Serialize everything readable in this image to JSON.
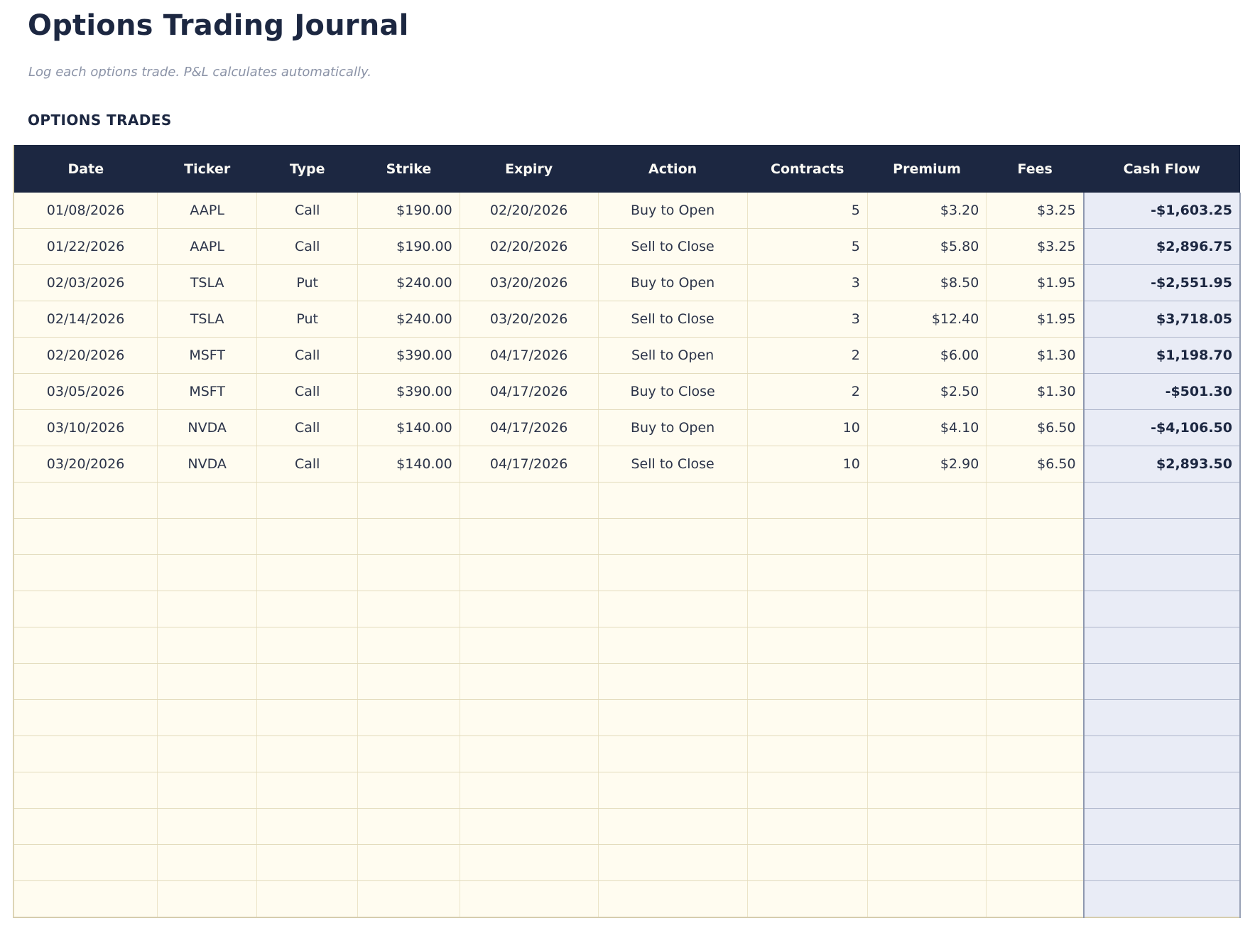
{
  "page": {
    "title": "Options Trading Journal",
    "subtitle": "Log each options trade. P&L calculates automatically.",
    "section_title": "OPTIONS TRADES"
  },
  "table": {
    "columns": [
      {
        "label": "Date",
        "name": "date",
        "align": "center"
      },
      {
        "label": "Ticker",
        "name": "ticker",
        "align": "center"
      },
      {
        "label": "Type",
        "name": "type",
        "align": "center"
      },
      {
        "label": "Strike",
        "name": "strike",
        "align": "right"
      },
      {
        "label": "Expiry",
        "name": "expiry",
        "align": "center"
      },
      {
        "label": "Action",
        "name": "action",
        "align": "center"
      },
      {
        "label": "Contracts",
        "name": "contracts",
        "align": "right"
      },
      {
        "label": "Premium",
        "name": "premium",
        "align": "right"
      },
      {
        "label": "Fees",
        "name": "fees",
        "align": "right"
      },
      {
        "label": "Cash Flow",
        "name": "cash-flow",
        "align": "right"
      }
    ],
    "rows": [
      [
        "01/08/2026",
        "AAPL",
        "Call",
        "$190.00",
        "02/20/2026",
        "Buy to Open",
        "5",
        "$3.20",
        "$3.25",
        "-$1,603.25"
      ],
      [
        "01/22/2026",
        "AAPL",
        "Call",
        "$190.00",
        "02/20/2026",
        "Sell to Close",
        "5",
        "$5.80",
        "$3.25",
        "$2,896.75"
      ],
      [
        "02/03/2026",
        "TSLA",
        "Put",
        "$240.00",
        "03/20/2026",
        "Buy to Open",
        "3",
        "$8.50",
        "$1.95",
        "-$2,551.95"
      ],
      [
        "02/14/2026",
        "TSLA",
        "Put",
        "$240.00",
        "03/20/2026",
        "Sell to Close",
        "3",
        "$12.40",
        "$1.95",
        "$3,718.05"
      ],
      [
        "02/20/2026",
        "MSFT",
        "Call",
        "$390.00",
        "04/17/2026",
        "Sell to Open",
        "2",
        "$6.00",
        "$1.30",
        "$1,198.70"
      ],
      [
        "03/05/2026",
        "MSFT",
        "Call",
        "$390.00",
        "04/17/2026",
        "Buy to Close",
        "2",
        "$2.50",
        "$1.30",
        "-$501.30"
      ],
      [
        "03/10/2026",
        "NVDA",
        "Call",
        "$140.00",
        "04/17/2026",
        "Buy to Open",
        "10",
        "$4.10",
        "$6.50",
        "-$4,106.50"
      ],
      [
        "03/20/2026",
        "NVDA",
        "Call",
        "$140.00",
        "04/17/2026",
        "Sell to Close",
        "10",
        "$2.90",
        "$6.50",
        "$2,893.50"
      ]
    ],
    "empty_row_count": 12
  },
  "colors": {
    "header_bg": "#1c2741",
    "header_text": "#faf9f4",
    "title_text": "#1c2741",
    "subtitle_text": "#8b93a7",
    "cell_bg": "#fffcf0",
    "cell_border": "#e3dbbc",
    "cash_flow_bg": "#e9ecf6",
    "cash_flow_border": "#8f98ae",
    "cash_flow_text": "#1c2741"
  }
}
